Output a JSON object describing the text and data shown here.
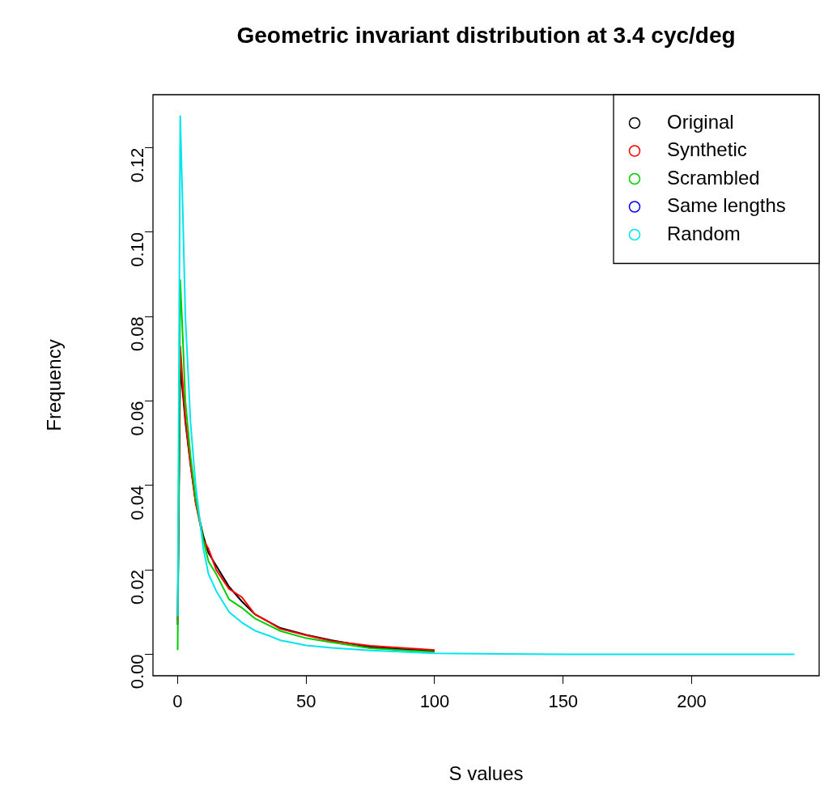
{
  "chart_data": {
    "type": "line",
    "title": "Geometric invariant distribution at 3.4 cyc/deg",
    "xlabel": "S values",
    "ylabel": "Frequency",
    "x": [
      0,
      1,
      2,
      3,
      5,
      7,
      10,
      12,
      15,
      20,
      25,
      30,
      35,
      40,
      50,
      60,
      75,
      100,
      125,
      150,
      200,
      240
    ],
    "series": [
      {
        "name": "Original",
        "color": "#000000",
        "values": [
          0.007,
          0.068,
          0.062,
          0.055,
          0.045,
          0.036,
          0.028,
          0.024,
          0.021,
          0.016,
          0.0125,
          0.0095,
          0.0078,
          0.0062,
          0.0046,
          0.0033,
          0.0017,
          0.0007,
          null,
          null,
          null,
          null
        ]
      },
      {
        "name": "Synthetic",
        "color": "#ff0000",
        "values": [
          0.008,
          0.073,
          0.064,
          0.056,
          0.045,
          0.036,
          0.027,
          0.025,
          0.02,
          0.0155,
          0.0135,
          0.0095,
          0.0078,
          0.006,
          0.0045,
          0.0031,
          0.002,
          0.001,
          null,
          null,
          null,
          null
        ]
      },
      {
        "name": "Scrambled",
        "color": "#00cd00",
        "values": [
          0.001,
          0.0887,
          0.075,
          0.06,
          0.047,
          0.037,
          0.027,
          0.022,
          0.019,
          0.013,
          0.011,
          0.0085,
          0.007,
          0.0055,
          0.0038,
          0.0028,
          0.0014,
          0.0005,
          null,
          null,
          null,
          null
        ]
      },
      {
        "name": "Same lengths",
        "color": "#0000ff",
        "values": [
          null,
          null,
          null,
          null,
          null,
          null,
          null,
          null,
          null,
          null,
          null,
          null,
          null,
          null,
          null,
          null,
          null,
          null,
          null,
          null,
          null,
          null
        ]
      },
      {
        "name": "Random",
        "color": "#00e5ee",
        "values": [
          0.009,
          0.1275,
          0.105,
          0.08,
          0.055,
          0.04,
          0.025,
          0.019,
          0.015,
          0.01,
          0.0075,
          0.0056,
          0.0045,
          0.0033,
          0.0021,
          0.0015,
          0.0009,
          0.0002,
          0.0001,
          0,
          0,
          0
        ]
      }
    ],
    "xlim": [
      -9.6,
      249.6
    ],
    "xticks": [
      0,
      50,
      100,
      150,
      200
    ],
    "ylim": [
      -0.0051,
      0.1326
    ],
    "yticks": [
      {
        "value": 0,
        "label": "0.00"
      },
      {
        "value": 0.02,
        "label": "0.02"
      },
      {
        "value": 0.04,
        "label": "0.04"
      },
      {
        "value": 0.06,
        "label": "0.06"
      },
      {
        "value": 0.08,
        "label": "0.08"
      },
      {
        "value": 0.1,
        "label": "0.10"
      },
      {
        "value": 0.12,
        "label": "0.12"
      }
    ],
    "legend": "top right",
    "marker": "none",
    "line_style": "solid",
    "grid": false
  }
}
